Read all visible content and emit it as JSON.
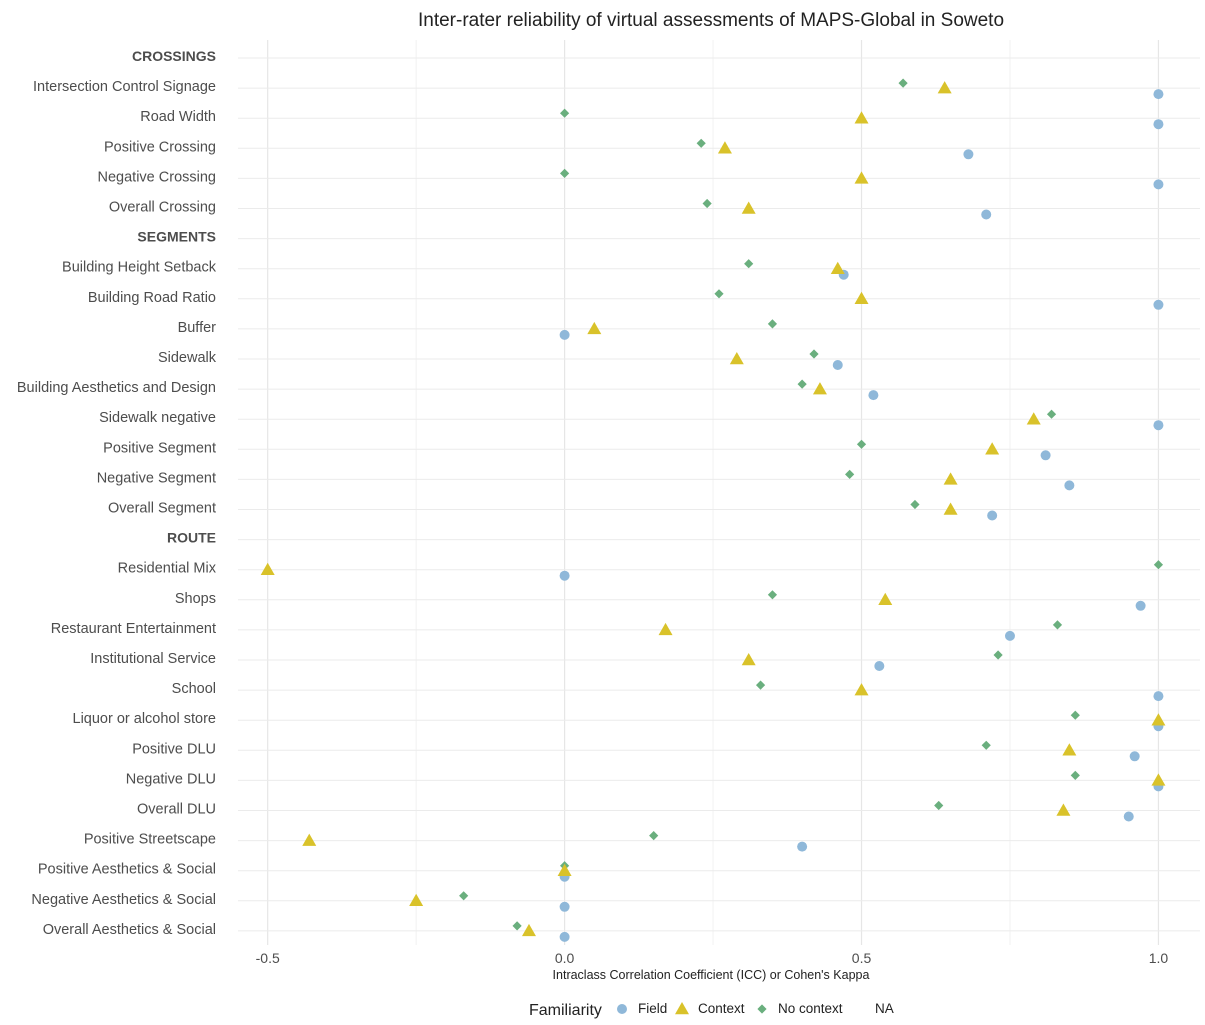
{
  "chart_data": {
    "type": "scatter",
    "title": "Inter-rater reliability of virtual assessments of MAPS-Global in Soweto",
    "xlabel": "Intraclass Correlation Coefficient (ICC) or Cohen's Kappa",
    "ylabel": "",
    "xlim": [
      -0.55,
      1.07
    ],
    "x_ticks": [
      -0.5,
      0.0,
      0.5,
      1.0
    ],
    "x_tick_labels": [
      "-0.5",
      "0.0",
      "0.5",
      "1.0"
    ],
    "grid": true,
    "legend_position": "bottom",
    "legend": {
      "title": "Familiarity",
      "entries": [
        {
          "label": "Field",
          "shape": "circle",
          "color": "#8fb8d9"
        },
        {
          "label": "Context",
          "shape": "triangle",
          "color": "#d9c22a"
        },
        {
          "label": "No context",
          "shape": "diamond",
          "color": "#6aaf7e"
        },
        {
          "label": "NA",
          "shape": "none",
          "color": ""
        }
      ]
    },
    "categories": [
      "CROSSINGS",
      "Intersection Control Signage",
      "Road Width",
      "Positive Crossing",
      "Negative Crossing",
      "Overall Crossing",
      "SEGMENTS",
      "Building Height Setback",
      "Building Road Ratio",
      "Buffer",
      "Sidewalk",
      "Building Aesthetics and Design",
      "Sidewalk negative",
      "Positive Segment",
      "Negative Segment",
      "Overall Segment",
      "ROUTE",
      "Residential Mix",
      "Shops",
      "Restaurant Entertainment",
      "Institutional Service",
      "School",
      "Liquor or alcohol store",
      "Positive DLU",
      "Negative DLU",
      "Overall DLU",
      "Positive Streetscape",
      "Positive Aesthetics & Social",
      "Negative Aesthetics & Social",
      "Overall Aesthetics & Social"
    ],
    "section_headers": [
      "CROSSINGS",
      "SEGMENTS",
      "ROUTE"
    ],
    "series": [
      {
        "name": "Field",
        "color": "#8fb8d9",
        "values": [
          null,
          1.0,
          1.0,
          0.68,
          1.0,
          0.71,
          null,
          0.47,
          1.0,
          0.0,
          0.46,
          0.52,
          1.0,
          0.81,
          0.85,
          0.72,
          null,
          0.0,
          0.97,
          0.75,
          0.53,
          1.0,
          1.0,
          0.96,
          1.0,
          0.95,
          0.4,
          0.0,
          0.0,
          0.0
        ]
      },
      {
        "name": "Context",
        "color": "#d9c22a",
        "values": [
          null,
          0.64,
          0.5,
          0.27,
          0.5,
          0.31,
          null,
          0.46,
          0.5,
          0.05,
          0.29,
          0.43,
          0.79,
          0.72,
          0.65,
          0.65,
          null,
          -0.5,
          0.54,
          0.17,
          0.31,
          0.5,
          1.0,
          0.85,
          1.0,
          0.84,
          -0.43,
          0.0,
          -0.25,
          -0.06
        ]
      },
      {
        "name": "No context",
        "color": "#6aaf7e",
        "values": [
          null,
          0.57,
          0.0,
          0.23,
          0.0,
          0.24,
          null,
          0.31,
          0.26,
          0.35,
          0.42,
          0.4,
          0.82,
          0.5,
          0.48,
          0.59,
          null,
          1.0,
          0.35,
          0.83,
          0.73,
          0.33,
          0.86,
          0.71,
          0.86,
          0.63,
          0.15,
          0.0,
          -0.17,
          -0.08
        ]
      }
    ]
  }
}
